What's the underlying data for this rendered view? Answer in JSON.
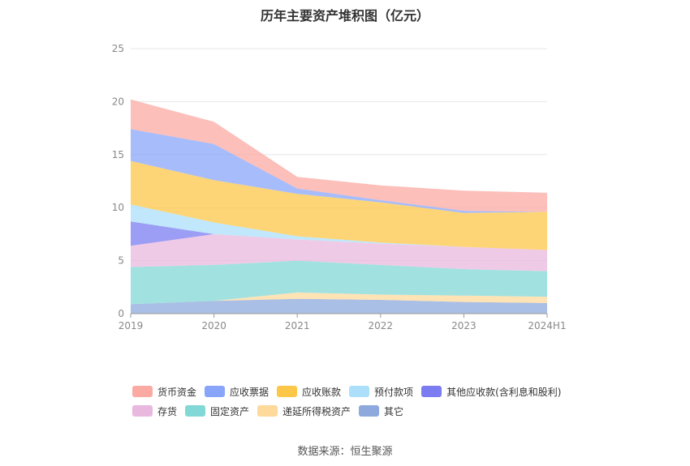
{
  "chart_data": {
    "type": "area",
    "title": "历年主要资产堆积图（亿元）",
    "categories": [
      "2019",
      "2020",
      "2021",
      "2022",
      "2023",
      "2024H1"
    ],
    "ylim": [
      0,
      25
    ],
    "yticks": [
      0,
      5,
      10,
      15,
      20,
      25
    ],
    "grid": true,
    "stacked": true,
    "legend_position": "bottom",
    "series": [
      {
        "name": "其它",
        "color": "#8eaadc",
        "values": [
          0.9,
          1.2,
          1.4,
          1.3,
          1.1,
          1.0
        ]
      },
      {
        "name": "递延所得税资产",
        "color": "#fdd99c",
        "values": [
          0.0,
          0.0,
          0.6,
          0.5,
          0.6,
          0.6
        ]
      },
      {
        "name": "固定资产",
        "color": "#82d8d6",
        "values": [
          3.5,
          3.4,
          3.0,
          2.8,
          2.5,
          2.4
        ]
      },
      {
        "name": "存货",
        "color": "#e9b8de",
        "values": [
          2.0,
          2.9,
          2.0,
          2.0,
          2.1,
          2.0
        ]
      },
      {
        "name": "其他应收款(含利息和股利)",
        "color": "#7b7cf1",
        "values": [
          2.3,
          0.0,
          0.0,
          0.0,
          0.0,
          0.0
        ]
      },
      {
        "name": "预付款项",
        "color": "#abdffa",
        "values": [
          1.6,
          1.1,
          0.3,
          0.1,
          0.0,
          0.0
        ]
      },
      {
        "name": "应收账款",
        "color": "#fcc748",
        "values": [
          4.1,
          4.0,
          4.0,
          3.8,
          3.2,
          3.6
        ]
      },
      {
        "name": "应收票据",
        "color": "#88a5fa",
        "values": [
          3.0,
          3.4,
          0.5,
          0.2,
          0.2,
          0.0
        ]
      },
      {
        "name": "货币资金",
        "color": "#fbaaa3",
        "values": [
          2.8,
          2.1,
          1.1,
          1.4,
          1.9,
          1.8
        ]
      }
    ]
  },
  "legend": {
    "rows": [
      [
        {
          "label": "货币资金",
          "color": "#fbaaa3"
        },
        {
          "label": "应收票据",
          "color": "#88a5fa"
        },
        {
          "label": "应收账款",
          "color": "#fcc748"
        },
        {
          "label": "预付款项",
          "color": "#abdffa"
        },
        {
          "label": "其他应收款(含利息和股利)",
          "color": "#7b7cf1"
        }
      ],
      [
        {
          "label": "存货",
          "color": "#e9b8de"
        },
        {
          "label": "固定资产",
          "color": "#82d8d6"
        },
        {
          "label": "递延所得税资产",
          "color": "#fdd99c"
        },
        {
          "label": "其它",
          "color": "#8eaadc"
        }
      ]
    ]
  },
  "footer": {
    "source": "数据来源：恒生聚源"
  }
}
